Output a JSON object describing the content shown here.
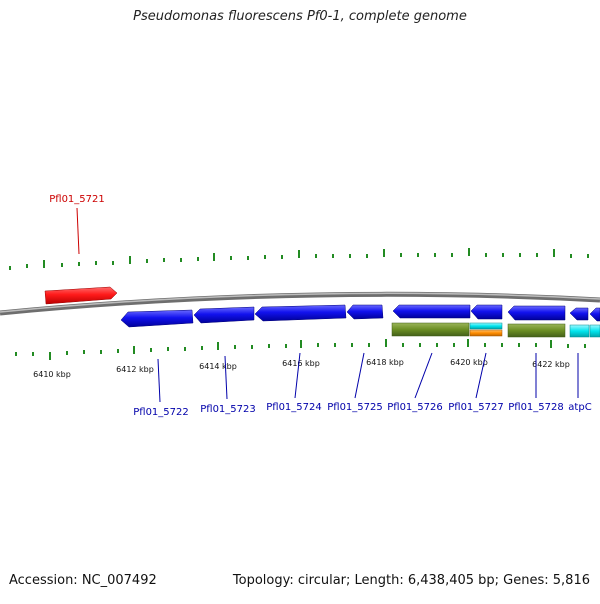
{
  "title": "Pseudomonas fluorescens Pf0-1, complete genome",
  "footer": {
    "accession": "Accession: NC_007492",
    "info": "Topology: circular; Length: 6,438,405 bp; Genes: 5,816"
  },
  "scale_labels": [
    "6410 kbp",
    "6412 kbp",
    "6414 kbp",
    "6416 kbp",
    "6418 kbp",
    "6420 kbp",
    "6422 kbp"
  ],
  "gene_labels": {
    "top": [
      "Pfl01_5721"
    ],
    "bottom": [
      "Pfl01_5722",
      "Pfl01_5723",
      "Pfl01_5724",
      "Pfl01_5725",
      "Pfl01_5726",
      "Pfl01_5727",
      "Pfl01_5728",
      "atpC"
    ]
  },
  "colors": {
    "forward_gene": "#ff0000",
    "reverse_gene": "#0000ee",
    "feature_olive": "#6b8e23",
    "feature_cyan": "#00e5ee",
    "feature_orange": "#ff8c00",
    "backbone": "#808080",
    "tick": "#228b22",
    "top_label": "#cc0000",
    "bottom_label": "#0000aa"
  }
}
